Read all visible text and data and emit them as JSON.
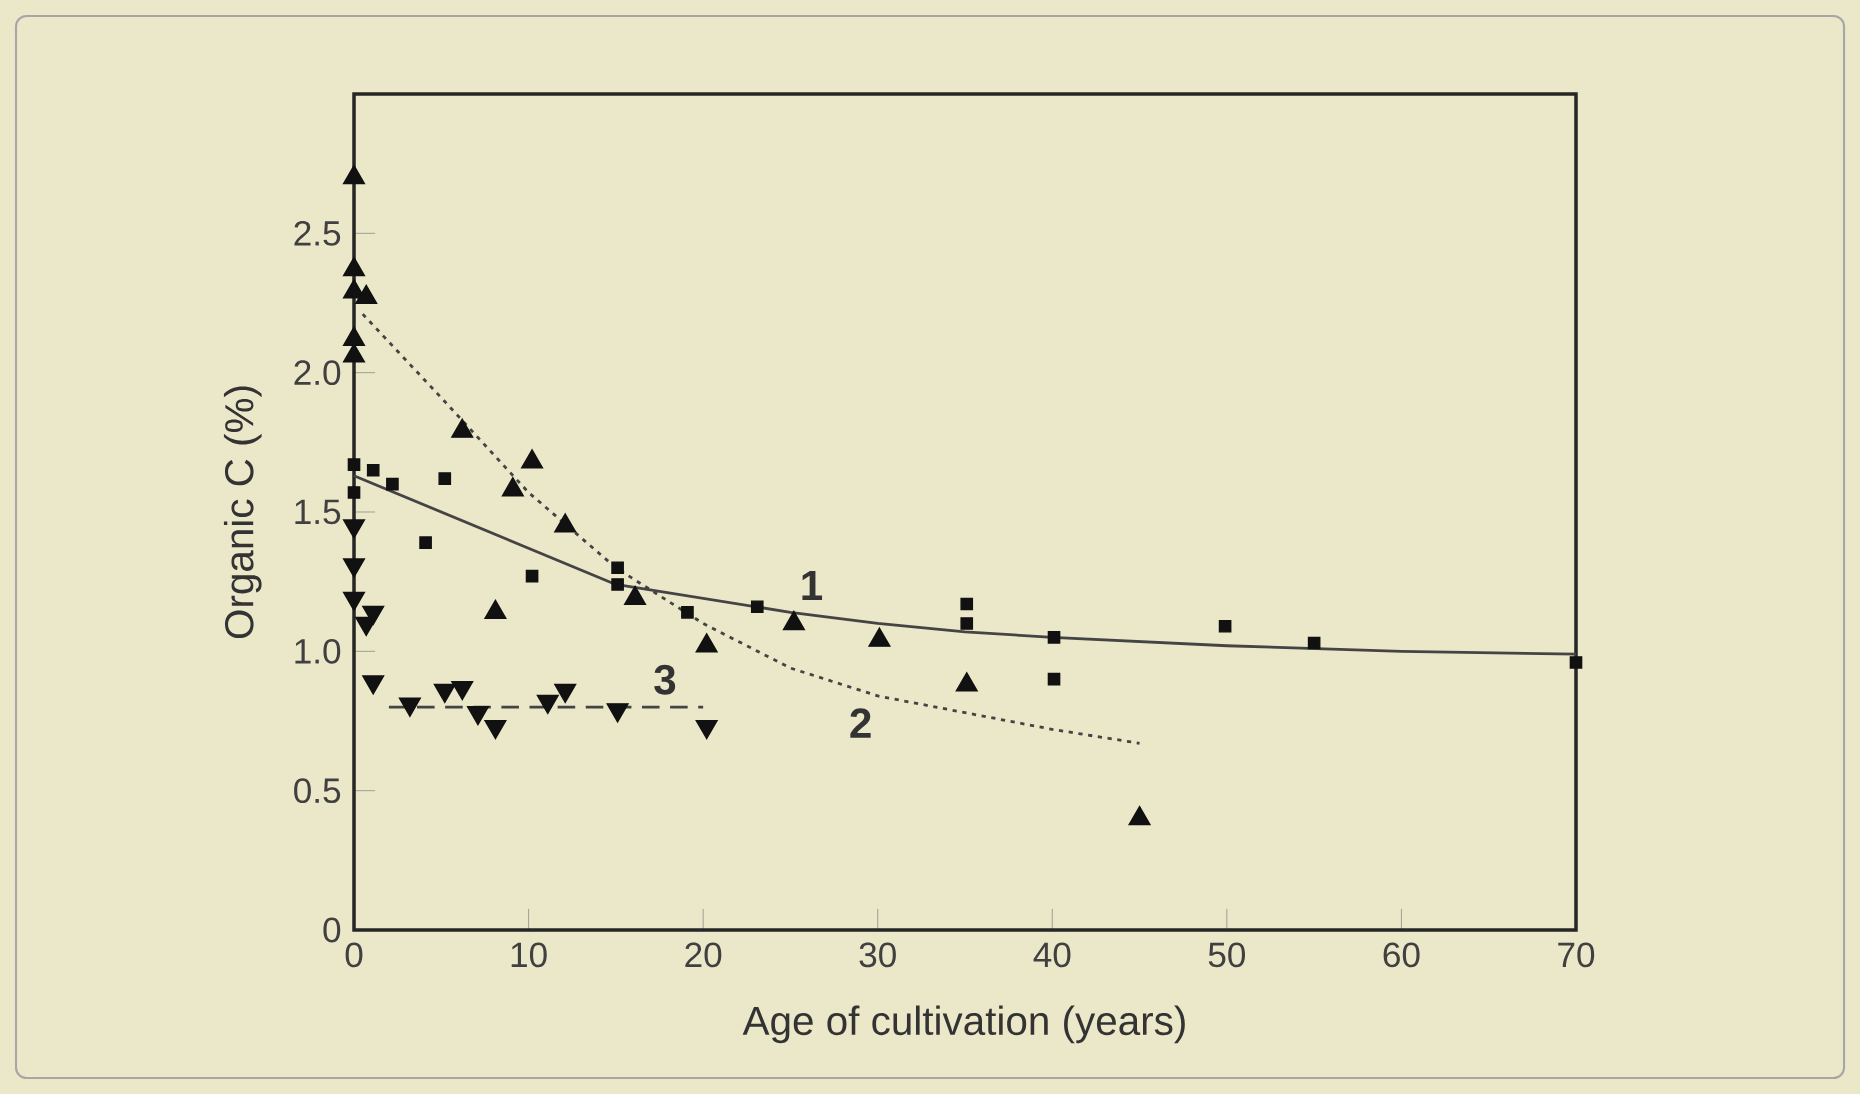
{
  "chart_data": {
    "type": "scatter",
    "xlabel": "Age of cultivation (years)",
    "ylabel": "Organic C (%)",
    "xlim": [
      0,
      70
    ],
    "ylim": [
      0,
      3
    ],
    "xticks": [
      0,
      10,
      20,
      30,
      40,
      50,
      60,
      70
    ],
    "yticks": [
      0,
      0.5,
      {
        "value": 1,
        "label": "1.0"
      },
      1.5,
      {
        "value": 2,
        "label": "2.0"
      },
      2.5
    ],
    "series": [
      {
        "marker": "square",
        "color": "#111111",
        "x": [
          0,
          0,
          1.1,
          2.2,
          5.2,
          4.1,
          10.2,
          15.1,
          15.1,
          19.1,
          23.1,
          35.1,
          35.1,
          40.1,
          40.1,
          49.9,
          55.0,
          70
        ],
        "values": [
          1.67,
          1.57,
          1.65,
          1.6,
          1.62,
          1.39,
          1.27,
          1.3,
          1.24,
          1.14,
          1.16,
          1.17,
          1.1,
          1.05,
          0.9,
          1.09,
          1.03,
          0.96
        ]
      },
      {
        "marker": "triangle",
        "color": "#111111",
        "x": [
          0,
          0,
          0,
          0.7,
          0,
          0,
          6.2,
          10.2,
          9.1,
          12.1,
          8.1,
          16.1,
          20.2,
          25.2,
          30.1,
          35.1,
          45.0
        ],
        "values": [
          2.7,
          2.37,
          2.29,
          2.27,
          2.12,
          2.06,
          1.79,
          1.68,
          1.58,
          1.45,
          1.14,
          1.19,
          1.02,
          1.1,
          1.04,
          0.88,
          0.4
        ]
      },
      {
        "marker": "triangle down",
        "color": "#111111",
        "x": [
          0,
          0,
          0,
          1.1,
          0.7,
          1.1,
          3.2,
          5.2,
          6.2,
          7.1,
          8.1,
          11.1,
          12.1,
          15.1,
          20.2
        ],
        "values": [
          1.45,
          1.31,
          1.19,
          1.14,
          1.1,
          0.89,
          0.81,
          0.86,
          0.87,
          0.78,
          0.73,
          0.82,
          0.86,
          0.79,
          0.73
        ]
      },
      {
        "type": "line",
        "name": "1",
        "line_style": "solid",
        "color": "#444444",
        "x": [
          0,
          5,
          10,
          15,
          20,
          25,
          30,
          35,
          40,
          50,
          60,
          70
        ],
        "values": [
          1.63,
          1.5,
          1.37,
          1.24,
          1.19,
          1.14,
          1.1,
          1.07,
          1.05,
          1.02,
          1.0,
          0.99
        ]
      },
      {
        "type": "line",
        "name": "2",
        "line_style": "dotted",
        "color": "#444444",
        "x": [
          0.5,
          5,
          10,
          15,
          20,
          25,
          30,
          35,
          40,
          45
        ],
        "values": [
          2.21,
          1.91,
          1.57,
          1.3,
          1.1,
          0.94,
          0.84,
          0.78,
          0.72,
          0.67
        ]
      },
      {
        "type": "line",
        "name": "3",
        "line_style": "dashed",
        "color": "#444444",
        "x": [
          2,
          20
        ],
        "values": [
          0.8,
          0.8
        ]
      }
    ]
  }
}
